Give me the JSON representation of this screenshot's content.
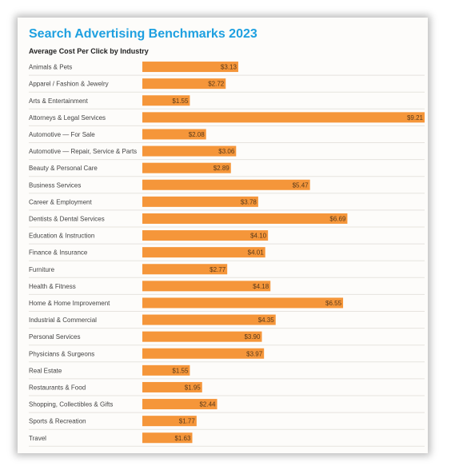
{
  "chart_data": {
    "type": "bar",
    "orientation": "horizontal",
    "title": "Search Advertising Benchmarks 2023",
    "subtitle": "Average Cost Per Click by Industry",
    "bar_color": "#f5963a",
    "title_color": "#1ea0e0",
    "categories": [
      "Animals & Pets",
      "Apparel / Fashion & Jewelry",
      "Arts & Entertainment",
      "Attorneys & Legal Services",
      "Automotive — For Sale",
      "Automotive — Repair, Service & Parts",
      "Beauty & Personal Care",
      "Business Services",
      "Career & Employment",
      "Dentists & Dental Services",
      "Education & Instruction",
      "Finance & Insurance",
      "Furniture",
      "Health & Fitness",
      "Home & Home Improvement",
      "Industrial & Commercial",
      "Personal Services",
      "Physicians & Surgeons",
      "Real Estate",
      "Restaurants & Food",
      "Shopping, Collectibles & Gifts",
      "Sports & Recreation",
      "Travel"
    ],
    "values": [
      3.13,
      2.72,
      1.55,
      9.21,
      2.08,
      3.06,
      2.89,
      5.47,
      3.78,
      6.69,
      4.1,
      4.01,
      2.77,
      4.18,
      6.55,
      4.35,
      3.9,
      3.97,
      1.55,
      1.95,
      2.44,
      1.77,
      1.63
    ],
    "value_labels": [
      "$3.13",
      "$2.72",
      "$1.55",
      "$9.21",
      "$2.08",
      "$3.06",
      "$2.89",
      "$5.47",
      "$3.78",
      "$6.69",
      "$4.10",
      "$4.01",
      "$2.77",
      "$4.18",
      "$6.55",
      "$4.35",
      "$3.90",
      "$3.97",
      "$1.55",
      "$1.95",
      "$2.44",
      "$1.77",
      "$1.63"
    ],
    "xlim": [
      0,
      9.21
    ]
  }
}
